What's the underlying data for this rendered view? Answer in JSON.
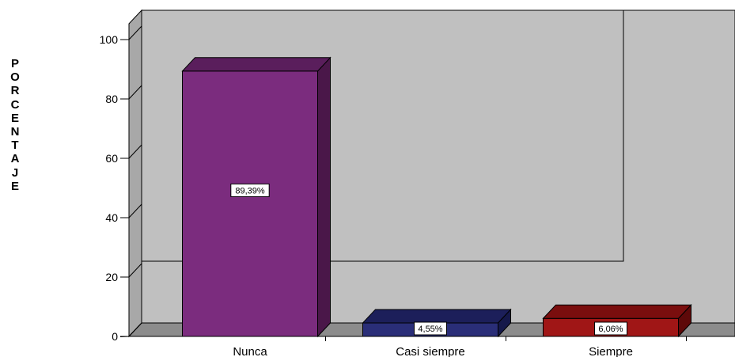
{
  "chart_data": {
    "type": "bar",
    "style": "3d",
    "categories": [
      "Nunca",
      "Casi siempre",
      "Siempre"
    ],
    "values": [
      89.39,
      4.55,
      6.06
    ],
    "data_labels": [
      "89,39%",
      "4,55%",
      "6,06%"
    ],
    "title": "",
    "xlabel": "",
    "ylabel": "PORCENTAJE",
    "ylim": [
      0,
      100
    ],
    "yticks": [
      0,
      20,
      40,
      60,
      80,
      100
    ],
    "grid": false,
    "legend": "none",
    "colors": {
      "bars": [
        "#7B2C7E",
        "#2A2E78",
        "#A01616"
      ],
      "bar_tops": [
        "#5A1E5C",
        "#1C1F5A",
        "#7A0E0E"
      ],
      "bar_sides": [
        "#4A1749",
        "#15184A",
        "#5E0909"
      ],
      "wall": "#C0C0C0",
      "floor": "#8C8C8C",
      "side_wall": "#A8A8A8"
    }
  }
}
